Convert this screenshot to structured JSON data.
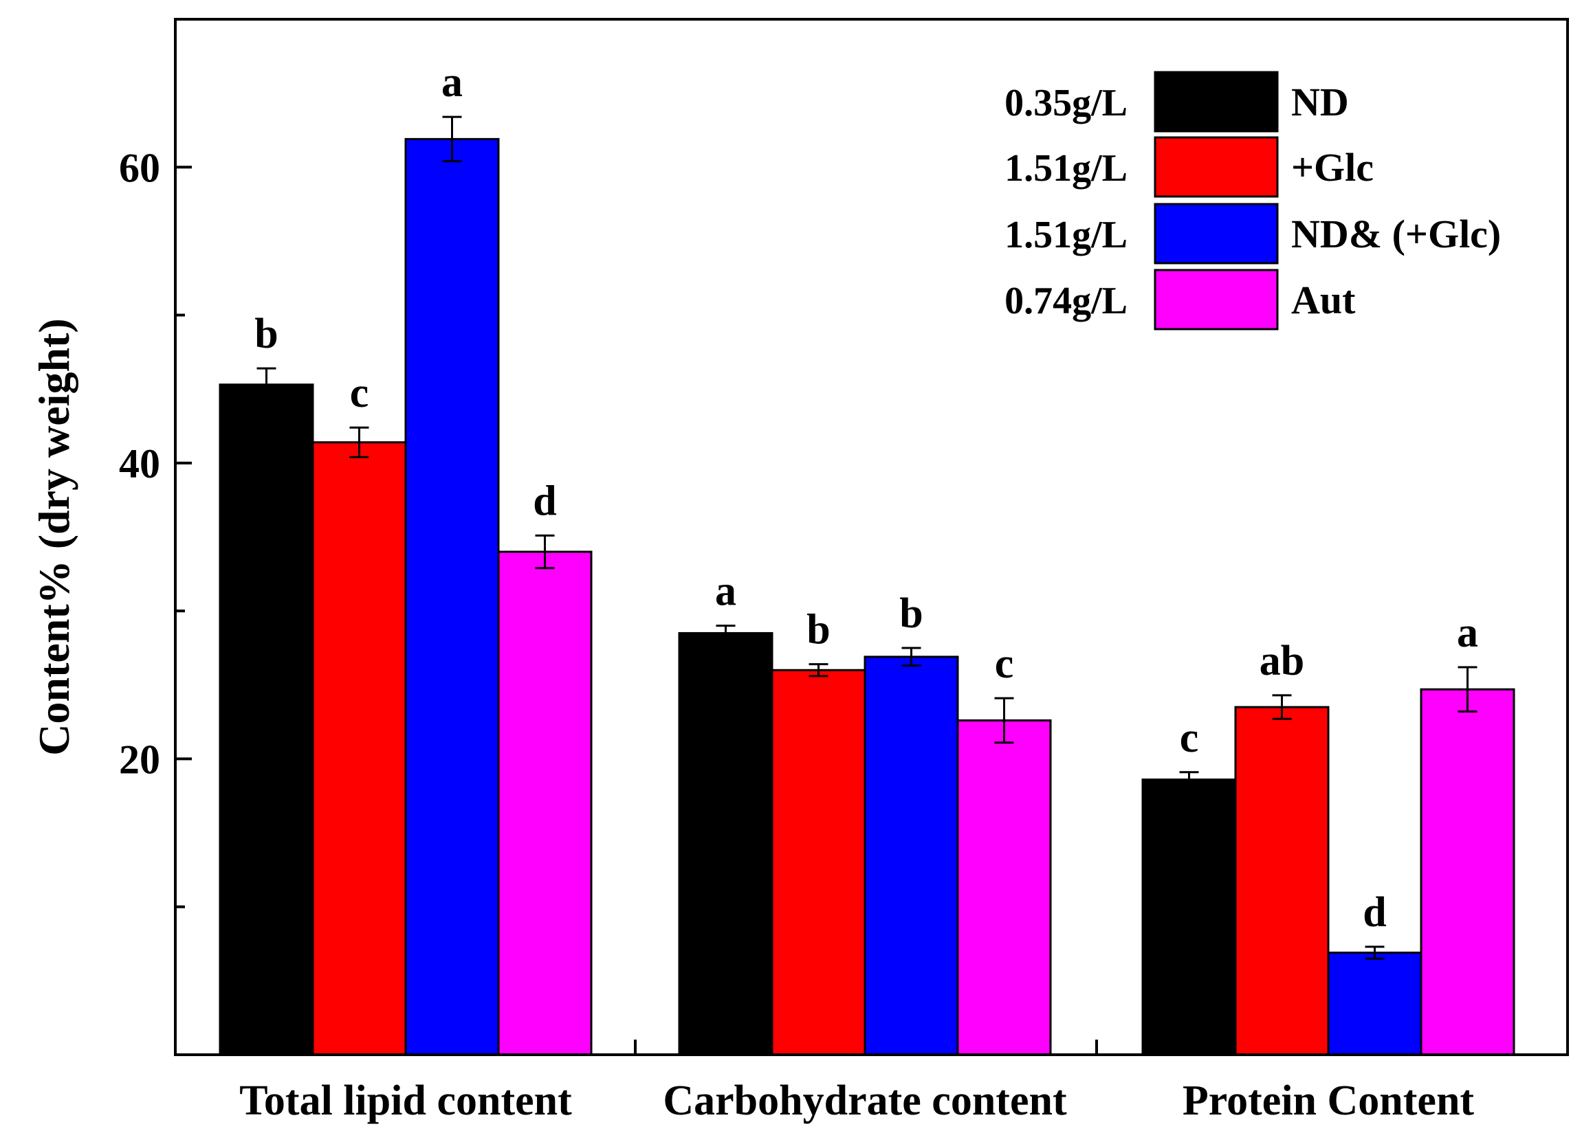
{
  "chart_data": {
    "type": "bar",
    "title": "",
    "xlabel": "",
    "ylabel": "Content% (dry weight)",
    "ylim": [
      0,
      70
    ],
    "yticks": [
      20,
      40,
      60
    ],
    "yminor_ticks": [
      10,
      30,
      50
    ],
    "grid": false,
    "legend_position": "top-right",
    "categories": [
      "Total lipid content",
      "Carbohydrate content",
      "Protein Content"
    ],
    "series": [
      {
        "name": "ND",
        "biomass": "0.35g/L",
        "color": "#000000",
        "values": [
          45.3,
          28.5,
          18.6
        ],
        "errors": [
          1.1,
          0.5,
          0.5
        ],
        "letters": [
          "b",
          "a",
          "c"
        ]
      },
      {
        "name": "+Glc",
        "biomass": "1.51g/L",
        "color": "#ff0000",
        "values": [
          41.4,
          26.0,
          23.5
        ],
        "errors": [
          1.0,
          0.4,
          0.8
        ],
        "letters": [
          "c",
          "b",
          "ab"
        ]
      },
      {
        "name": "ND& (+Glc)",
        "biomass": "1.51g/L",
        "color": "#0000ff",
        "values": [
          61.9,
          26.9,
          6.9
        ],
        "errors": [
          1.5,
          0.6,
          0.4
        ],
        "letters": [
          "a",
          "b",
          "d"
        ]
      },
      {
        "name": "Aut",
        "biomass": "0.74g/L",
        "color": "#ff00ff",
        "values": [
          34.0,
          22.6,
          24.7
        ],
        "errors": [
          1.1,
          1.5,
          1.5
        ],
        "letters": [
          "d",
          "c",
          "a"
        ]
      }
    ]
  }
}
